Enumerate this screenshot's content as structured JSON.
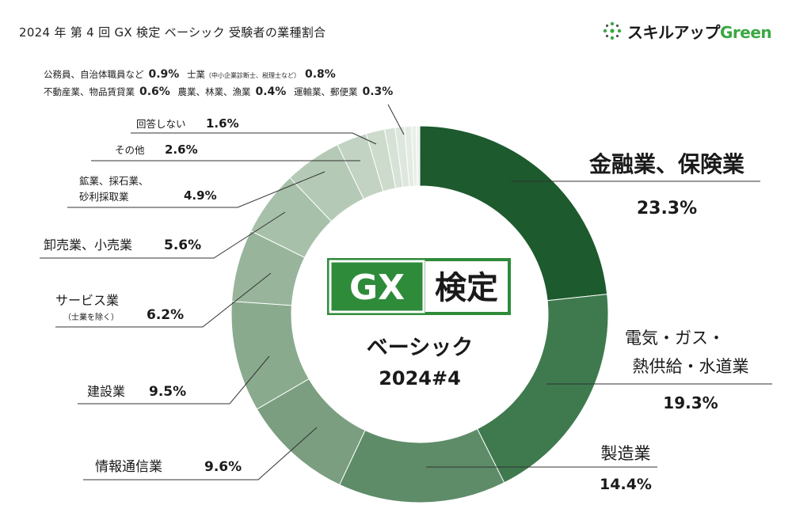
{
  "title": "2024 年 第 4 回 GX 検定 ベーシック 受験者の業種割合",
  "brand": {
    "logo_name": "sparkle-logo-icon",
    "text_main": "スキルアップ",
    "text_green": "Green",
    "green_color": "#3aa842"
  },
  "center": {
    "badge_gx": "GX",
    "badge_kentei": "検定",
    "line1": "ベーシック",
    "line2": "2024#4",
    "badge_color": "#2e8b3a"
  },
  "chart_data": {
    "type": "pie",
    "subtype": "donut",
    "unit": "%",
    "start": "top, clockwise",
    "categories": [
      "金融業、保険業",
      "電気・ガス・熱供給・水道業",
      "製造業",
      "情報通信業",
      "建設業",
      "サービス業（士業を除く）",
      "卸売業、小売業",
      "鉱業、採石業、砂利採取業",
      "その他",
      "回答しない",
      "公務員、自治体職員など",
      "士業（中小企業診断士、税理士など）",
      "不動産業、物品賃貸業",
      "農業、林業、漁業",
      "運輸業、郵便業"
    ],
    "values": [
      23.3,
      19.3,
      14.4,
      9.6,
      9.5,
      6.2,
      5.6,
      4.9,
      2.6,
      1.6,
      0.9,
      0.8,
      0.6,
      0.4,
      0.3
    ],
    "colors": [
      "#1d5a2e",
      "#3e7a4e",
      "#5e8c68",
      "#7a9e7f",
      "#8aaa8e",
      "#98b59b",
      "#a7c0a9",
      "#b5cab6",
      "#c2d3c3",
      "#cddbcd",
      "#d6e2d6",
      "#dde7dd",
      "#e3ebe3",
      "#e8efe8",
      "#edf2ed"
    ]
  },
  "labels": {
    "finance_name": "金融業、保険業",
    "finance_pct": "23.3%",
    "electric_name1": "電気・ガス・",
    "electric_name2": "熱供給・水道業",
    "electric_pct": "19.3%",
    "manufacturing_name": "製造業",
    "manufacturing_pct": "14.4%",
    "it_name": "情報通信業",
    "it_pct": "9.6%",
    "construction_name": "建設業",
    "construction_pct": "9.5%",
    "service_name": "サービス業",
    "service_note": "（士業を除く）",
    "service_pct": "6.2%",
    "retail_name": "卸売業、小売業",
    "retail_pct": "5.6%",
    "mining_name1": "鉱業、採石業、",
    "mining_name2": "砂利採取業",
    "mining_pct": "4.9%",
    "other_name": "その他",
    "other_pct": "2.6%",
    "noanswer_name": "回答しない",
    "noanswer_pct": "1.6%",
    "public_name": "公務員、自治体職員など",
    "public_pct": "0.9%",
    "shigyo_name": "士業",
    "shigyo_note": "（中小企業診断士、税理士など）",
    "shigyo_pct": "0.8%",
    "realestate_name": "不動産業、物品賃貸業",
    "realestate_pct": "0.6%",
    "agri_name": "農業、林業、漁業",
    "agri_pct": "0.4%",
    "transport_name": "運輸業、郵便業",
    "transport_pct": "0.3%"
  }
}
